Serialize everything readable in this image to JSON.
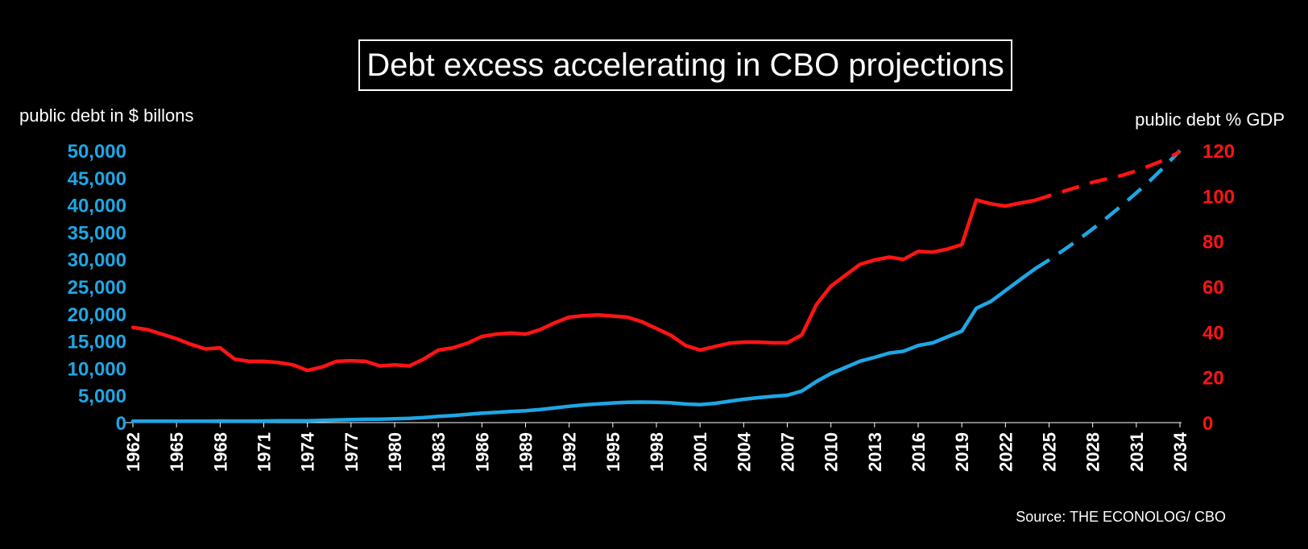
{
  "chart_data": {
    "type": "line",
    "title": "Debt excess accelerating in CBO projections",
    "ylabel_left": "public debt in $ billons",
    "ylabel_right": "public debt % GDP",
    "source": "Source: THE ECONOLOG/ CBO",
    "colors": {
      "left_series": "#1fa6e4",
      "right_series": "#ff1414",
      "background": "#000000",
      "text": "#ffffff"
    },
    "ylim_left": [
      0,
      50000
    ],
    "ylim_right": [
      0,
      120
    ],
    "yticks_left": [
      "50,000",
      "45,000",
      "40,000",
      "35,000",
      "30,000",
      "25,000",
      "20,000",
      "15,000",
      "10,000",
      "5,000",
      "0"
    ],
    "yticks_right": [
      "120",
      "100",
      "80",
      "60",
      "40",
      "20",
      "0"
    ],
    "xticks": [
      "1962",
      "1965",
      "1968",
      "1971",
      "1974",
      "1977",
      "1980",
      "1983",
      "1986",
      "1989",
      "1992",
      "1995",
      "1998",
      "2001",
      "2004",
      "2007",
      "2010",
      "2013",
      "2016",
      "2019",
      "2022",
      "2025",
      "2028",
      "2031",
      "2034"
    ],
    "grid": false,
    "x_range": [
      1962,
      2034
    ],
    "series": [
      {
        "name": "public debt in $ billons",
        "axis": "left",
        "x_actual": [
          1962,
          1963,
          1964,
          1965,
          1966,
          1967,
          1968,
          1969,
          1970,
          1971,
          1972,
          1973,
          1974,
          1975,
          1976,
          1977,
          1978,
          1979,
          1980,
          1981,
          1982,
          1983,
          1984,
          1985,
          1986,
          1987,
          1988,
          1989,
          1990,
          1991,
          1992,
          1993,
          1994,
          1995,
          1996,
          1997,
          1998,
          1999,
          2000,
          2001,
          2002,
          2003,
          2004,
          2005,
          2006,
          2007,
          2008,
          2009,
          2010,
          2011,
          2012,
          2013,
          2014,
          2015,
          2016,
          2017,
          2018,
          2019,
          2020,
          2021,
          2022,
          2023,
          2024
        ],
        "values_actual": [
          248,
          254,
          256,
          261,
          264,
          267,
          290,
          278,
          283,
          303,
          322,
          341,
          344,
          395,
          477,
          549,
          607,
          640,
          712,
          790,
          925,
          1137,
          1307,
          1507,
          1741,
          1890,
          2051,
          2191,
          2412,
          2689,
          3000,
          3248,
          3433,
          3604,
          3734,
          3772,
          3721,
          3632,
          3410,
          3320,
          3540,
          3913,
          4296,
          4592,
          4829,
          5035,
          5803,
          7545,
          9019,
          10128,
          11281,
          11983,
          12780,
          13117,
          14168,
          14665,
          15750,
          16801,
          21017,
          22284,
          24253,
          26240,
          28200
        ],
        "x_projected": [
          2024,
          2025,
          2026,
          2027,
          2028,
          2029,
          2030,
          2031,
          2032,
          2033,
          2034
        ],
        "values_projected": [
          28200,
          29900,
          31700,
          33600,
          35600,
          37700,
          39900,
          42200,
          44600,
          47200,
          50000
        ]
      },
      {
        "name": "public debt % GDP",
        "axis": "right",
        "x_actual": [
          1962,
          1963,
          1964,
          1965,
          1966,
          1967,
          1968,
          1969,
          1970,
          1971,
          1972,
          1973,
          1974,
          1975,
          1976,
          1977,
          1978,
          1979,
          1980,
          1981,
          1982,
          1983,
          1984,
          1985,
          1986,
          1987,
          1988,
          1989,
          1990,
          1991,
          1992,
          1993,
          1994,
          1995,
          1996,
          1997,
          1998,
          1999,
          2000,
          2001,
          2002,
          2003,
          2004,
          2005,
          2006,
          2007,
          2008,
          2009,
          2010,
          2011,
          2012,
          2013,
          2014,
          2015,
          2016,
          2017,
          2018,
          2019,
          2020,
          2021,
          2022,
          2023,
          2024
        ],
        "values_actual": [
          42,
          41,
          39,
          37,
          34.5,
          32.5,
          33,
          28,
          27,
          27,
          26.5,
          25.5,
          23,
          24.5,
          27,
          27.3,
          27,
          25,
          25.5,
          25,
          28,
          32,
          33,
          35,
          38,
          39,
          39.5,
          39,
          41,
          44,
          46.5,
          47.2,
          47.5,
          47,
          46.5,
          44.5,
          41.5,
          38.5,
          34,
          32,
          33.5,
          35,
          35.5,
          35.5,
          35.2,
          35.2,
          38.7,
          52,
          60.2,
          65,
          69.8,
          71.7,
          73,
          72,
          75.5,
          75.2,
          76.5,
          78.5,
          98.2,
          96.5,
          95.5,
          96.8,
          98
        ],
        "x_projected": [
          2024,
          2025,
          2026,
          2027,
          2028,
          2029,
          2030,
          2031,
          2032,
          2033,
          2034
        ],
        "values_projected": [
          98,
          100,
          102,
          104,
          106,
          107.5,
          109,
          111,
          113.5,
          116,
          119.5
        ]
      }
    ]
  }
}
